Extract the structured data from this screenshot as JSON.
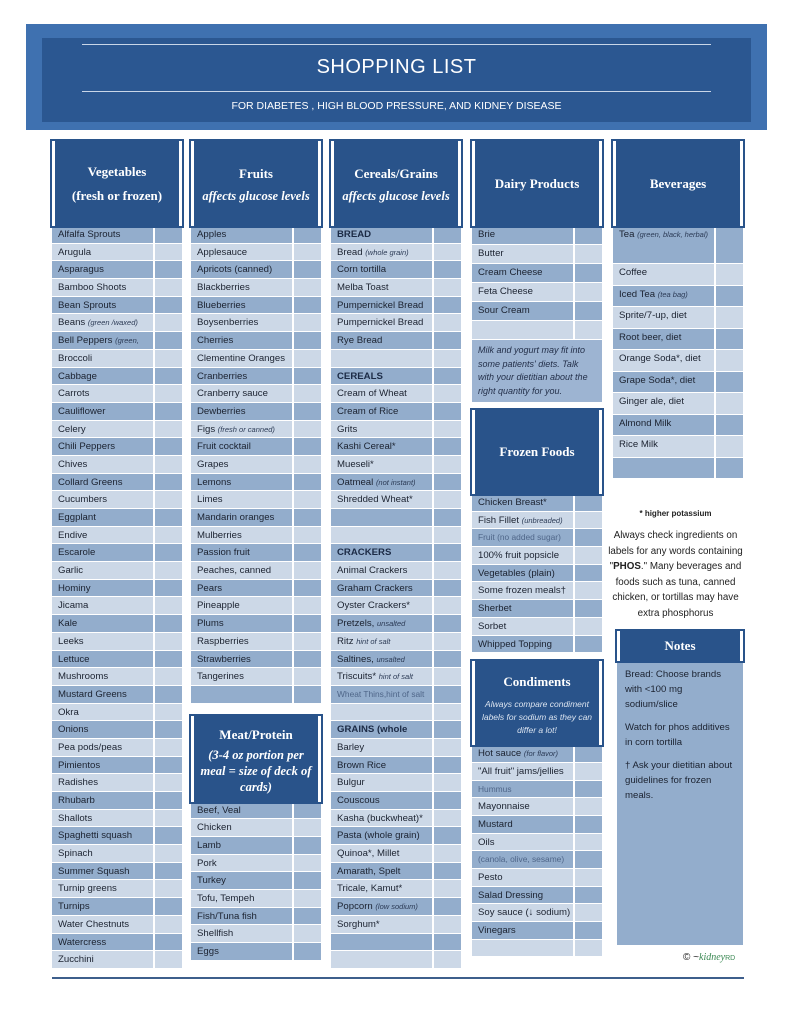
{
  "header": {
    "title": "SHOPPING LIST",
    "subtitle": "FOR  DIABETES , HIGH BLOOD PRESSURE, AND KIDNEY DISEASE"
  },
  "vegetables": {
    "title": "Vegetables",
    "subtitle": "(fresh or frozen)",
    "items": [
      {
        "name": "Alfalfa Sprouts"
      },
      {
        "name": "Arugula"
      },
      {
        "name": "Asparagus"
      },
      {
        "name": "Bamboo Shoots"
      },
      {
        "name": "Bean Sprouts"
      },
      {
        "name": "Beans",
        "note": "(green /waxed)"
      },
      {
        "name": "Bell Peppers",
        "note": "(green,"
      },
      {
        "name": "Broccoli"
      },
      {
        "name": "Cabbage"
      },
      {
        "name": "Carrots"
      },
      {
        "name": "Cauliflower"
      },
      {
        "name": "Celery"
      },
      {
        "name": "Chili Peppers"
      },
      {
        "name": "Chives"
      },
      {
        "name": "Collard Greens"
      },
      {
        "name": "Cucumbers"
      },
      {
        "name": "Eggplant"
      },
      {
        "name": "Endive"
      },
      {
        "name": "Escarole"
      },
      {
        "name": "Garlic"
      },
      {
        "name": "Hominy"
      },
      {
        "name": "Jicama"
      },
      {
        "name": "Kale"
      },
      {
        "name": "Leeks"
      },
      {
        "name": "Lettuce"
      },
      {
        "name": "Mushrooms"
      },
      {
        "name": "Mustard Greens"
      },
      {
        "name": "Okra"
      },
      {
        "name": "Onions"
      },
      {
        "name": "Pea pods/peas"
      },
      {
        "name": "Pimientos"
      },
      {
        "name": "Radishes"
      },
      {
        "name": "Rhubarb"
      },
      {
        "name": "Shallots"
      },
      {
        "name": "Spaghetti squash"
      },
      {
        "name": "Spinach"
      },
      {
        "name": "Summer Squash"
      },
      {
        "name": "Turnip greens"
      },
      {
        "name": "Turnips"
      },
      {
        "name": "Water Chestnuts"
      },
      {
        "name": "Watercress"
      },
      {
        "name": "Zucchini"
      }
    ]
  },
  "fruits": {
    "title": "Fruits",
    "subtitle": "affects glucose levels",
    "items": [
      {
        "name": "Apples"
      },
      {
        "name": "Applesauce"
      },
      {
        "name": "Apricots (canned)"
      },
      {
        "name": "Blackberries"
      },
      {
        "name": "Blueberries"
      },
      {
        "name": "Boysenberries"
      },
      {
        "name": "Cherries"
      },
      {
        "name": "Clementine Oranges"
      },
      {
        "name": "Cranberries"
      },
      {
        "name": "Cranberry sauce"
      },
      {
        "name": "Dewberries"
      },
      {
        "name": "Figs",
        "note": "(fresh or canned)"
      },
      {
        "name": "Fruit cocktail"
      },
      {
        "name": "Grapes"
      },
      {
        "name": "Lemons"
      },
      {
        "name": "Limes"
      },
      {
        "name": "Mandarin oranges"
      },
      {
        "name": "Mulberries"
      },
      {
        "name": "Passion fruit"
      },
      {
        "name": "Peaches, canned"
      },
      {
        "name": "Pears"
      },
      {
        "name": "Pineapple"
      },
      {
        "name": "Plums"
      },
      {
        "name": "Raspberries"
      },
      {
        "name": "Strawberries"
      },
      {
        "name": "Tangerines"
      },
      {
        "name": ""
      }
    ]
  },
  "meat": {
    "title": "Meat/Protein",
    "subtitle": "(3-4 oz portion per meal = size of deck of cards)",
    "items": [
      {
        "name": "Beef, Veal"
      },
      {
        "name": "Chicken"
      },
      {
        "name": "Lamb"
      },
      {
        "name": "Pork"
      },
      {
        "name": "Turkey"
      },
      {
        "name": "Tofu, Tempeh"
      },
      {
        "name": "Fish/Tuna fish"
      },
      {
        "name": "Shellfish"
      },
      {
        "name": "Eggs"
      }
    ]
  },
  "cereals": {
    "title": "Cereals/Grains",
    "subtitle": "affects glucose levels",
    "items": [
      {
        "name": "BREAD",
        "cap": true
      },
      {
        "name": "Bread",
        "note": "(whole grain)"
      },
      {
        "name": "Corn tortilla"
      },
      {
        "name": "Melba Toast"
      },
      {
        "name": "Pumpernickel Bread"
      },
      {
        "name": "Pumpernickel Bread"
      },
      {
        "name": "Rye Bread"
      },
      {
        "name": ""
      },
      {
        "name": "CEREALS",
        "cap": true
      },
      {
        "name": "Cream of Wheat"
      },
      {
        "name": "Cream of Rice"
      },
      {
        "name": "Grits"
      },
      {
        "name": "Kashi Cereal*"
      },
      {
        "name": "Mueseli*"
      },
      {
        "name": "Oatmeal",
        "note": "(not instant)"
      },
      {
        "name": "Shredded Wheat*"
      },
      {
        "name": ""
      },
      {
        "name": ""
      },
      {
        "name": "CRACKERS",
        "cap": true
      },
      {
        "name": "Animal Crackers"
      },
      {
        "name": "Graham Crackers"
      },
      {
        "name": "Oyster Crackers*"
      },
      {
        "name": "Pretzels,",
        "note": "unsalted"
      },
      {
        "name": "Ritz",
        "note": "hint of salt"
      },
      {
        "name": "Saltines,",
        "note": "unsalted"
      },
      {
        "name": "Triscuits*",
        "note": "hint of salt"
      },
      {
        "name": "Wheat Thins,hint of salt",
        "dim": true
      },
      {
        "name": ""
      },
      {
        "name": "GRAINS (whole",
        "cap": true
      },
      {
        "name": "Barley"
      },
      {
        "name": "Brown Rice"
      },
      {
        "name": "Bulgur"
      },
      {
        "name": "Couscous"
      },
      {
        "name": "Kasha (buckwheat)*"
      },
      {
        "name": "Pasta (whole grain)"
      },
      {
        "name": "Quinoa*, Millet"
      },
      {
        "name": "Amarath, Spelt"
      },
      {
        "name": "Tricale, Kamut*"
      },
      {
        "name": "Popcorn",
        "note": "(low sodium)"
      },
      {
        "name": "Sorghum*"
      },
      {
        "name": ""
      },
      {
        "name": ""
      }
    ]
  },
  "dairy": {
    "title": "Dairy  Products",
    "items": [
      {
        "name": "Brie"
      },
      {
        "name": "Butter"
      },
      {
        "name": "Cream Cheese"
      },
      {
        "name": "Feta Cheese"
      },
      {
        "name": "Sour Cream"
      },
      {
        "name": ""
      }
    ],
    "note": "Milk and yogurt may fit into some patients' diets. Talk with your dietitian about the right quantity for you."
  },
  "frozen": {
    "title": "Frozen Foods",
    "items": [
      {
        "name": "Chicken Breast*"
      },
      {
        "name": "Fish Fillet",
        "note": "(unbreaded)"
      },
      {
        "name": "Fruit (no added sugar)",
        "dim": true
      },
      {
        "name": "100% fruit popsicle"
      },
      {
        "name": "Vegetables (plain)"
      },
      {
        "name": "Some frozen meals†"
      },
      {
        "name": "Sherbet"
      },
      {
        "name": "Sorbet"
      },
      {
        "name": "Whipped Topping"
      }
    ]
  },
  "condiments": {
    "title": "Condiments",
    "subtitle": "Always compare condiment labels for sodium as they can differ a lot!",
    "items": [
      {
        "name": "Hot sauce",
        "note": "(for flavor)"
      },
      {
        "name": "\"All fruit\" jams/jellies"
      },
      {
        "name": "Hummus",
        "dim": true
      },
      {
        "name": "Mayonnaise"
      },
      {
        "name": "Mustard"
      },
      {
        "name": "Oils"
      },
      {
        "name": "(canola, olive, sesame)",
        "dim": true
      },
      {
        "name": "Pesto"
      },
      {
        "name": "Salad Dressing"
      },
      {
        "name": "Soy sauce (↓ sodium)"
      },
      {
        "name": "Vinegars"
      },
      {
        "name": ""
      }
    ]
  },
  "beverages": {
    "title": "Beverages",
    "items": [
      {
        "name": "Tea",
        "note": "(green, black, herbal)"
      },
      {
        "name": "Coffee"
      },
      {
        "name": "Iced Tea",
        "note": "(tea bag)"
      },
      {
        "name": "Sprite/7-up, diet"
      },
      {
        "name": "Root beer, diet"
      },
      {
        "name": "Orange Soda*, diet"
      },
      {
        "name": "Grape Soda*, diet"
      },
      {
        "name": "Ginger ale, diet"
      },
      {
        "name": "Almond Milk"
      },
      {
        "name": "Rice Milk"
      },
      {
        "name": ""
      }
    ]
  },
  "footnote": "* higher potassium",
  "phos_note": {
    "before": "Always check ingredients on labels for any words containing \"",
    "bold": "PHOS",
    "after": ".\" Many beverages and foods such as tuna, canned chicken, or tortillas may have extra phosphorus"
  },
  "notes": {
    "title": "Notes",
    "items": [
      "Bread: Choose brands with <100 mg sodium/slice",
      "Watch for phos additives in corn tortilla",
      "† Ask your dietitian about guidelines for frozen meals."
    ]
  },
  "logo": {
    "symbol": "©",
    "brand": "kidney",
    "suffix": "RD"
  },
  "colors": {
    "header": "#29538a",
    "banner": "#3f71b0",
    "row_dark": "#93adcc",
    "row_light": "#ccd8e7"
  }
}
